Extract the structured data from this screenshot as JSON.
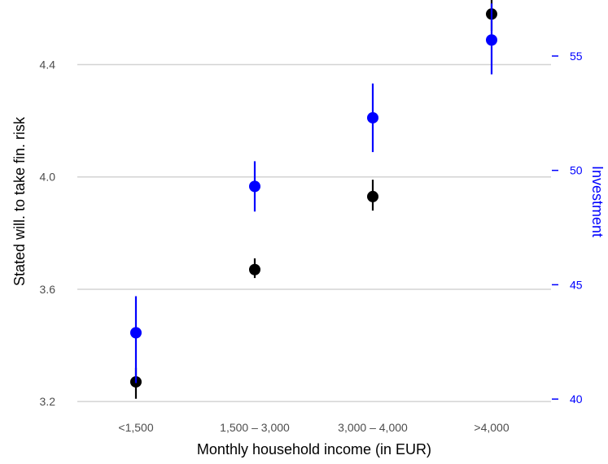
{
  "chart_data": {
    "type": "scatter",
    "xlabel": "Monthly household income (in EUR)",
    "ylabel_left": "Stated will. to take fin. risk",
    "ylabel_right": "Investment",
    "categories": [
      "<1,500",
      "1,500 – 3,000",
      "3,000 – 4,000",
      ">4,000"
    ],
    "y_left_ticks": [
      "3.2",
      "3.6",
      "4.0",
      "4.4"
    ],
    "y_left_tick_values": [
      3.2,
      3.6,
      4.0,
      4.4
    ],
    "y_right_ticks": [
      "40",
      "45",
      "50",
      "55"
    ],
    "y_right_tick_values": [
      40,
      45,
      50,
      55
    ],
    "y_left_range": [
      3.16,
      4.63
    ],
    "y_right_range": [
      39.4,
      57.45
    ],
    "grid": "horizontal",
    "series": [
      {
        "axis": "left",
        "color": "#000000",
        "values": [
          3.27,
          3.67,
          3.93,
          4.58
        ],
        "lower": [
          3.21,
          3.64,
          3.88,
          4.52
        ],
        "upper": [
          3.32,
          3.71,
          3.99,
          4.64
        ]
      },
      {
        "axis": "right",
        "color": "#0000ff",
        "values": [
          42.9,
          49.3,
          52.3,
          55.7
        ],
        "lower": [
          40.7,
          48.2,
          50.8,
          54.2
        ],
        "upper": [
          44.5,
          50.4,
          53.8,
          57.3
        ]
      }
    ]
  }
}
